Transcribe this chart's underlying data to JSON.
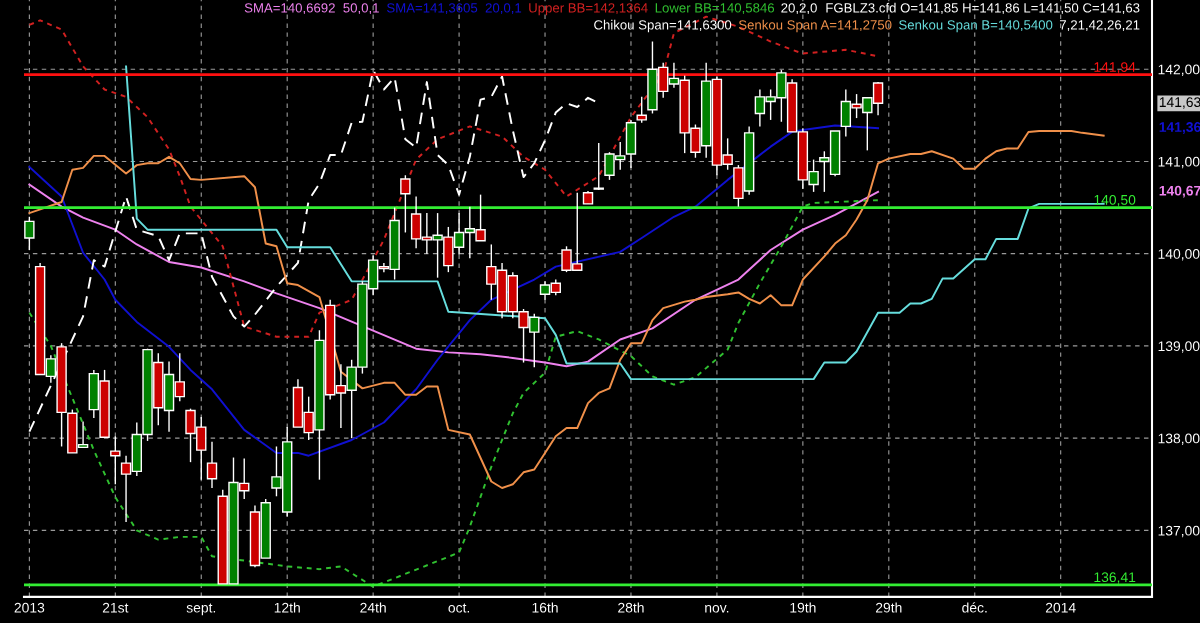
{
  "chart_data": {
    "type": "candlestick",
    "grid": true,
    "categories": [
      "2013",
      null,
      null,
      null,
      null,
      null,
      null,
      null,
      "21st",
      null,
      null,
      null,
      null,
      null,
      null,
      null,
      "sept.",
      null,
      null,
      null,
      null,
      null,
      null,
      null,
      "12th",
      null,
      null,
      null,
      null,
      null,
      null,
      null,
      "24th",
      null,
      null,
      null,
      null,
      null,
      null,
      null,
      "oct.",
      null,
      null,
      null,
      null,
      null,
      null,
      null,
      "16th",
      null,
      null,
      null,
      null,
      null,
      null,
      null,
      "28th",
      null,
      null,
      null,
      null,
      null,
      null,
      null,
      "nov.",
      null,
      null,
      null,
      null,
      null,
      null,
      null,
      "19th",
      null,
      null,
      null,
      null,
      null,
      null,
      null,
      "29th",
      null,
      null,
      null,
      null,
      null,
      null,
      null,
      "déc.",
      null,
      null,
      null,
      null,
      null,
      null,
      null,
      "2014",
      null,
      null,
      null,
      null,
      null,
      null,
      null,
      null
    ],
    "ohlc": [
      [
        140.17,
        140.4,
        140.04,
        140.35
      ],
      [
        139.86,
        139.9,
        138.69,
        138.69
      ],
      [
        138.67,
        138.9,
        138.6,
        138.86
      ],
      [
        138.99,
        139.03,
        137.91,
        138.28
      ],
      [
        138.27,
        138.31,
        137.84,
        137.84
      ],
      [
        137.9,
        138.18,
        137.9,
        137.93
      ],
      [
        138.31,
        138.74,
        138.22,
        138.7
      ],
      [
        138.62,
        138.74,
        138.01,
        138.01
      ],
      [
        137.86,
        138.02,
        137.5,
        137.81
      ],
      [
        137.73,
        137.81,
        137.09,
        137.61
      ],
      [
        137.64,
        138.17,
        137.59,
        138.04
      ],
      [
        138.04,
        138.97,
        137.97,
        138.96
      ],
      [
        138.82,
        138.92,
        138.14,
        138.33
      ],
      [
        138.3,
        138.83,
        138.07,
        138.69
      ],
      [
        138.61,
        138.92,
        138.4,
        138.45
      ],
      [
        138.3,
        138.32,
        137.74,
        138.05
      ],
      [
        138.12,
        138.23,
        137.55,
        137.87
      ],
      [
        137.73,
        137.96,
        137.46,
        137.56
      ],
      [
        137.37,
        137.44,
        136.42,
        136.42
      ],
      [
        136.42,
        137.79,
        136.42,
        137.52
      ],
      [
        137.51,
        137.78,
        137.34,
        137.43
      ],
      [
        137.2,
        137.27,
        136.6,
        136.62
      ],
      [
        136.7,
        137.34,
        136.7,
        137.3
      ],
      [
        137.46,
        137.91,
        137.37,
        137.58
      ],
      [
        137.2,
        138.12,
        137.15,
        137.96
      ],
      [
        138.55,
        138.64,
        138.12,
        138.12
      ],
      [
        138.28,
        138.45,
        137.98,
        138.06
      ],
      [
        138.09,
        139.17,
        137.55,
        139.06
      ],
      [
        139.44,
        139.5,
        138.42,
        138.47
      ],
      [
        138.57,
        138.8,
        138.11,
        138.49
      ],
      [
        138.52,
        138.85,
        138.0,
        138.77
      ],
      [
        138.77,
        139.7,
        138.7,
        139.67
      ],
      [
        139.62,
        139.98,
        139.55,
        139.93
      ],
      [
        139.86,
        139.9,
        139.8,
        139.84
      ],
      [
        139.83,
        140.5,
        139.72,
        140.36
      ],
      [
        140.81,
        140.85,
        140.23,
        140.65
      ],
      [
        140.43,
        140.62,
        140.06,
        140.16
      ],
      [
        140.18,
        140.44,
        140.0,
        140.15
      ],
      [
        140.15,
        140.44,
        139.74,
        140.2
      ],
      [
        140.18,
        140.29,
        139.8,
        139.87
      ],
      [
        140.07,
        140.44,
        139.99,
        140.23
      ],
      [
        140.23,
        140.51,
        139.95,
        140.27
      ],
      [
        140.26,
        140.64,
        140.14,
        140.14
      ],
      [
        139.86,
        140.1,
        139.5,
        139.67
      ],
      [
        139.82,
        139.9,
        139.3,
        139.37
      ],
      [
        139.76,
        139.8,
        139.3,
        139.37
      ],
      [
        139.37,
        139.4,
        138.82,
        139.2
      ],
      [
        139.15,
        139.35,
        138.77,
        139.31
      ],
      [
        139.56,
        139.7,
        139.5,
        139.66
      ],
      [
        139.68,
        139.72,
        139.55,
        139.58
      ],
      [
        140.04,
        140.08,
        139.8,
        139.82
      ],
      [
        139.89,
        140.66,
        139.82,
        139.82
      ],
      [
        140.66,
        140.68,
        140.54,
        140.54
      ],
      [
        140.7,
        141.2,
        140.69,
        140.71
      ],
      [
        140.85,
        141.1,
        140.8,
        141.08
      ],
      [
        141.02,
        141.21,
        140.91,
        141.06
      ],
      [
        141.08,
        141.45,
        140.93,
        141.42
      ],
      [
        141.5,
        141.7,
        141.42,
        141.45
      ],
      [
        141.56,
        142.3,
        141.52,
        142.0
      ],
      [
        142.02,
        142.07,
        141.69,
        141.76
      ],
      [
        141.84,
        142.07,
        141.8,
        141.9
      ],
      [
        141.88,
        141.93,
        141.09,
        141.31
      ],
      [
        141.36,
        141.4,
        141.04,
        141.1
      ],
      [
        141.17,
        142.07,
        141.04,
        141.87
      ],
      [
        141.89,
        141.92,
        140.85,
        140.96
      ],
      [
        141.07,
        141.25,
        140.91,
        140.97
      ],
      [
        140.93,
        140.96,
        140.51,
        140.6
      ],
      [
        140.68,
        141.38,
        140.64,
        141.31
      ],
      [
        141.52,
        141.78,
        141.38,
        141.7
      ],
      [
        141.65,
        141.78,
        141.45,
        141.7
      ],
      [
        141.69,
        141.99,
        141.43,
        141.96
      ],
      [
        141.85,
        141.89,
        141.32,
        141.32
      ],
      [
        141.32,
        141.36,
        140.7,
        140.8
      ],
      [
        140.75,
        141.02,
        140.67,
        140.89
      ],
      [
        141.0,
        141.11,
        140.67,
        141.04
      ],
      [
        140.86,
        141.33,
        140.84,
        141.33
      ],
      [
        141.38,
        141.78,
        141.27,
        141.65
      ],
      [
        141.62,
        141.73,
        141.47,
        141.58
      ],
      [
        141.53,
        141.69,
        141.12,
        141.69
      ],
      [
        141.85,
        141.86,
        141.5,
        141.63
      ],
      null,
      null,
      null,
      null,
      null,
      null,
      null,
      null,
      null,
      null,
      null,
      null,
      null,
      null,
      null,
      null,
      null,
      null,
      null,
      null,
      null,
      null,
      null,
      null,
      null
    ],
    "colors": [
      "#008000",
      "#cc0000",
      "#008000",
      "#cc0000",
      "#cc0000",
      "#008000",
      "#008000",
      "#cc0000",
      "#cc0000",
      "#cc0000",
      "#008000",
      "#008000",
      "#cc0000",
      "#008000",
      "#cc0000",
      "#cc0000",
      "#cc0000",
      "#cc0000",
      "#cc0000",
      "#008000",
      "#cc0000",
      "#cc0000",
      "#008000",
      "#008000",
      "#008000",
      "#cc0000",
      "#cc0000",
      "#008000",
      "#cc0000",
      "#cc0000",
      "#008000",
      "#008000",
      "#008000",
      "#cc0000",
      "#008000",
      "#cc0000",
      "#cc0000",
      "#cc0000",
      "#008000",
      "#cc0000",
      "#008000",
      "#008000",
      "#cc0000",
      "#cc0000",
      "#cc0000",
      "#cc0000",
      "#cc0000",
      "#008000",
      "#008000",
      "#cc0000",
      "#cc0000",
      "#cc0000",
      "#cc0000",
      "#008000",
      "#008000",
      "#008000",
      "#008000",
      "#cc0000",
      "#008000",
      "#cc0000",
      "#008000",
      "#cc0000",
      "#cc0000",
      "#008000",
      "#cc0000",
      "#cc0000",
      "#cc0000",
      "#008000",
      "#008000",
      "#008000",
      "#008000",
      "#cc0000",
      "#cc0000",
      "#008000",
      "#008000",
      "#008000",
      "#008000",
      "#cc0000",
      "#008000",
      "#cc0000",
      null,
      null,
      null,
      null,
      null,
      null,
      null,
      null,
      null,
      null,
      null,
      null,
      null,
      null,
      null,
      null,
      null,
      null,
      null,
      null,
      null,
      null,
      null,
      null,
      null
    ],
    "series": [
      {
        "type": "line",
        "name": "SMA=140,6692  50,0,1",
        "color": "#ee82ee",
        "line_style": "solid",
        "values": [
          140.75,
          null,
          null,
          140.51,
          null,
          140.39,
          null,
          null,
          140.26,
          null,
          140.1,
          null,
          null,
          139.91,
          null,
          null,
          139.85,
          null,
          null,
          null,
          139.7,
          null,
          null,
          139.57,
          null,
          null,
          null,
          139.41,
          null,
          null,
          null,
          null,
          null,
          null,
          null,
          null,
          138.97,
          null,
          null,
          138.93,
          null,
          null,
          138.91,
          null,
          null,
          138.87,
          null,
          null,
          138.82,
          null,
          138.78,
          null,
          138.83,
          null,
          null,
          139.07,
          null,
          null,
          139.19,
          null,
          null,
          null,
          139.5,
          null,
          null,
          null,
          139.72,
          null,
          null,
          140.04,
          null,
          null,
          140.26,
          null,
          null,
          140.42,
          null,
          null,
          null,
          140.67,
          null,
          null,
          null,
          null,
          null,
          null,
          null,
          null,
          null,
          null,
          null,
          null,
          null,
          null,
          null,
          null,
          null,
          null,
          null,
          null,
          null,
          null,
          null,
          null,
          null
        ]
      },
      {
        "type": "line",
        "name": "SMA=141,3605  20,0,1",
        "color": "#1010d0",
        "line_style": "solid",
        "values": [
          140.94,
          null,
          null,
          140.62,
          null,
          140.01,
          null,
          139.72,
          139.5,
          null,
          139.26,
          null,
          null,
          138.99,
          null,
          138.74,
          null,
          138.53,
          null,
          null,
          138.09,
          null,
          null,
          137.84,
          null,
          137.84,
          137.81,
          null,
          null,
          null,
          137.98,
          null,
          null,
          138.17,
          null,
          null,
          138.53,
          null,
          138.85,
          null,
          null,
          139.28,
          null,
          139.5,
          null,
          null,
          null,
          139.72,
          null,
          139.86,
          null,
          null,
          null,
          null,
          null,
          140.02,
          null,
          140.17,
          null,
          null,
          140.4,
          null,
          140.51,
          null,
          null,
          140.8,
          null,
          null,
          null,
          141.16,
          null,
          141.32,
          141.34,
          null,
          null,
          141.39,
          null,
          null,
          null,
          141.36,
          null,
          null,
          null,
          null,
          null,
          null,
          null,
          null,
          null,
          null,
          null,
          null,
          null,
          null,
          null,
          null,
          null,
          null,
          null,
          null,
          null,
          null,
          null,
          null,
          null
        ]
      },
      {
        "type": "line",
        "name": "Upper BB=142,1364",
        "color": "#d02020",
        "line_style": "dotted",
        "values": [
          142.48,
          142.53,
          null,
          142.43,
          null,
          142.03,
          null,
          141.78,
          null,
          141.7,
          null,
          141.48,
          null,
          141.13,
          140.84,
          140.51,
          null,
          null,
          140.08,
          null,
          139.21,
          null,
          null,
          139.1,
          null,
          null,
          139.1,
          139.36,
          null,
          null,
          139.5,
          null,
          null,
          140.15,
          null,
          null,
          141.02,
          null,
          141.24,
          null,
          null,
          141.38,
          null,
          null,
          141.27,
          null,
          141.05,
          null,
          140.91,
          null,
          140.62,
          null,
          null,
          140.84,
          null,
          null,
          141.48,
          null,
          null,
          141.95,
          142.39,
          null,
          null,
          142.57,
          null,
          null,
          142.46,
          null,
          null,
          142.3,
          null,
          142.21,
          142.17,
          null,
          null,
          null,
          142.21,
          null,
          null,
          142.14,
          null,
          null,
          null,
          null,
          null,
          null,
          null,
          null,
          null,
          null,
          null,
          null,
          null,
          null,
          null,
          null,
          null,
          null,
          null,
          null,
          null,
          null,
          null,
          null,
          null
        ]
      },
      {
        "type": "line",
        "name": "Lower BB=140,5846",
        "color": "#30c030",
        "line_style": "dotted",
        "values": [
          139.36,
          null,
          139.0,
          null,
          null,
          null,
          137.87,
          null,
          137.36,
          null,
          137.0,
          null,
          136.9,
          null,
          136.93,
          null,
          136.93,
          136.72,
          null,
          null,
          null,
          null,
          null,
          null,
          136.61,
          null,
          null,
          136.58,
          null,
          136.61,
          null,
          null,
          136.39,
          null,
          null,
          null,
          null,
          null,
          null,
          null,
          136.76,
          137.04,
          null,
          137.69,
          null,
          138.27,
          138.49,
          null,
          138.71,
          139.1,
          null,
          139.16,
          null,
          139.07,
          null,
          null,
          138.89,
          null,
          138.67,
          null,
          138.58,
          null,
          138.66,
          null,
          null,
          138.96,
          139.25,
          null,
          139.68,
          null,
          140.08,
          null,
          140.51,
          140.55,
          null,
          140.56,
          null,
          null,
          null,
          140.58,
          null,
          null,
          null,
          null,
          null,
          null,
          null,
          null,
          null,
          null,
          null,
          null,
          null,
          null,
          null,
          null,
          null,
          null,
          null,
          null,
          null,
          null,
          null,
          null,
          null
        ]
      },
      {
        "type": "line",
        "name": "Chikou Span=141,6300",
        "color": "#ffffff",
        "line_style": "dashed",
        "values": [
          138.07,
          null,
          null,
          null,
          null,
          139.32,
          139.93,
          139.86,
          null,
          140.62,
          140.26,
          null,
          140.19,
          139.93,
          140.22,
          null,
          140.22,
          139.75,
          null,
          139.32,
          139.21,
          139.34,
          null,
          139.64,
          null,
          139.9,
          140.58,
          140.76,
          141.07,
          141.07,
          141.42,
          141.43,
          141.99,
          141.78,
          141.91,
          141.24,
          141.15,
          141.86,
          141.07,
          140.96,
          140.64,
          141.05,
          141.67,
          141.7,
          141.92,
          141.34,
          140.83,
          140.98,
          141.23,
          141.53,
          141.63,
          141.59,
          141.69,
          141.63,
          null,
          null,
          null,
          null,
          null,
          null,
          null,
          null,
          null,
          null,
          null,
          null,
          null,
          null,
          null,
          null,
          null,
          null,
          null,
          null,
          null,
          null,
          null,
          null,
          null,
          null,
          null,
          null,
          null,
          null,
          null,
          null,
          null,
          null,
          null,
          null,
          null,
          null,
          null,
          null,
          null,
          null,
          null,
          null,
          null,
          null,
          null,
          null,
          null,
          null,
          null
        ]
      },
      {
        "type": "line",
        "name": "Senkou Span A=141,2750",
        "color": "#f0904a",
        "line_style": "solid",
        "values": [
          140.44,
          null,
          null,
          140.56,
          140.91,
          140.93,
          141.06,
          141.06,
          null,
          140.87,
          140.96,
          140.98,
          140.98,
          141.05,
          140.98,
          140.81,
          140.8,
          null,
          null,
          null,
          140.84,
          140.72,
          140.11,
          140.08,
          139.68,
          139.66,
          null,
          139.53,
          null,
          138.72,
          null,
          138.54,
          null,
          138.6,
          138.6,
          138.47,
          138.47,
          138.56,
          138.56,
          138.09,
          null,
          138.04,
          null,
          137.53,
          137.46,
          137.5,
          137.63,
          137.66,
          137.84,
          138.02,
          138.11,
          138.11,
          138.38,
          138.49,
          138.54,
          138.85,
          139.03,
          139.03,
          139.28,
          139.41,
          null,
          139.48,
          139.5,
          139.53,
          null,
          139.56,
          139.58,
          139.51,
          139.46,
          139.55,
          139.44,
          139.44,
          139.72,
          null,
          139.97,
          140.11,
          140.2,
          140.37,
          140.58,
          140.98,
          141.03,
          null,
          141.08,
          141.08,
          141.11,
          null,
          141.03,
          140.92,
          140.92,
          141.03,
          141.11,
          141.14,
          141.14,
          141.32,
          141.33,
          null,
          null,
          141.33,
          141.31,
          null,
          141.28,
          null,
          null,
          null,
          null
        ]
      },
      {
        "type": "line",
        "name": "Senkou Span B=140,5400",
        "color": "#66dddd",
        "line_style": "solid",
        "values": [
          null,
          null,
          null,
          null,
          null,
          null,
          null,
          null,
          null,
          142.03,
          140.38,
          140.26,
          null,
          null,
          null,
          null,
          null,
          null,
          null,
          null,
          null,
          null,
          null,
          140.26,
          140.07,
          140.07,
          null,
          null,
          140.07,
          null,
          139.7,
          null,
          null,
          null,
          null,
          null,
          139.7,
          null,
          139.7,
          139.37,
          null,
          null,
          null,
          null,
          null,
          null,
          null,
          null,
          139.3,
          139.12,
          138.81,
          null,
          null,
          null,
          null,
          138.81,
          138.64,
          null,
          null,
          null,
          null,
          null,
          null,
          null,
          null,
          null,
          null,
          null,
          null,
          null,
          null,
          null,
          null,
          138.64,
          138.82,
          null,
          138.82,
          138.94,
          null,
          139.36,
          null,
          139.36,
          139.46,
          139.46,
          139.51,
          139.73,
          139.73,
          null,
          139.94,
          139.94,
          140.16,
          null,
          140.16,
          140.49,
          140.54,
          null,
          null,
          null,
          null,
          null,
          140.54,
          null,
          null,
          null,
          null
        ]
      }
    ],
    "ylim": [
      136.28,
      142.75
    ],
    "yticks": [
      {
        "value": 137,
        "label": "137,00"
      },
      {
        "value": 138,
        "label": "138,00"
      },
      {
        "value": 139,
        "label": "139,00"
      },
      {
        "value": 140,
        "label": "140,00"
      },
      {
        "value": 141,
        "label": "141,00"
      },
      {
        "value": 142,
        "label": "142,00"
      }
    ],
    "ref_lines": [
      {
        "axis": "y",
        "value": 141.94,
        "label": "141,94",
        "color": "#ff1010"
      },
      {
        "axis": "y",
        "value": 140.5,
        "label": "140,50",
        "color": "#33ee33"
      },
      {
        "axis": "y",
        "value": 136.41,
        "label": "136,41",
        "color": "#33ee33"
      }
    ],
    "annotations": [
      "20,2,0",
      "FGBLZ3.cfd O=141,85 H=141,86 L=141,50 C=141,63",
      "7,21,42,26,21",
      "141,63",
      "141,36",
      "140,67"
    ]
  }
}
